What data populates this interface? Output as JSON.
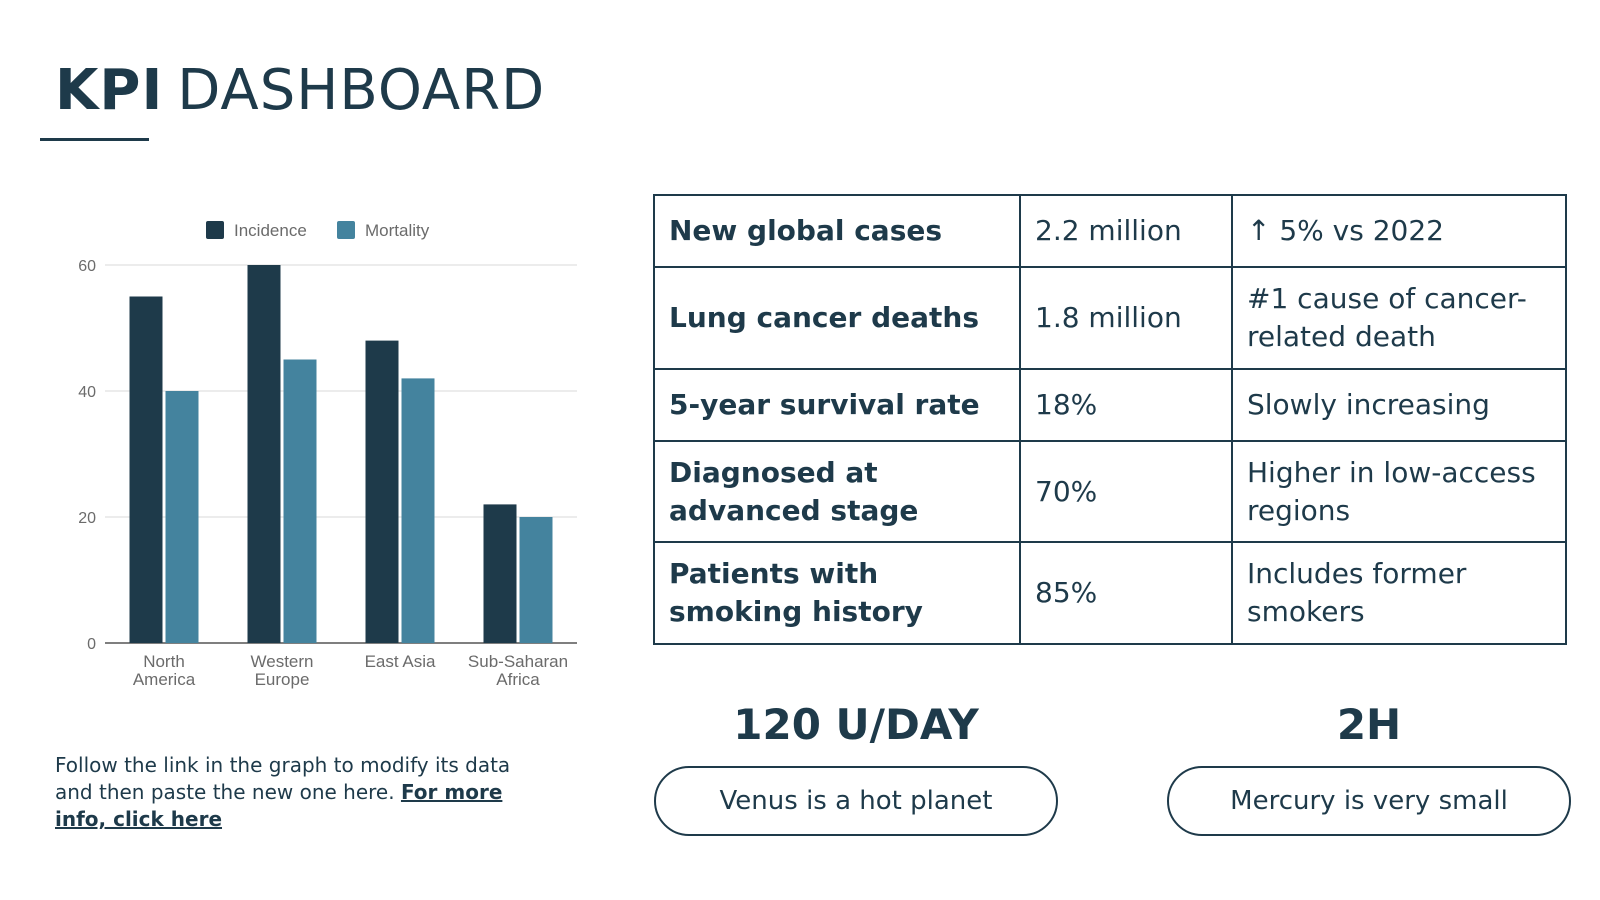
{
  "header": {
    "title_bold": "KPI",
    "title_rest": "DASHBOARD"
  },
  "colors": {
    "primary": "#1e3a4a",
    "incidence": "#1e3a4a",
    "mortality": "#44839e",
    "grid": "#d9d9d9"
  },
  "chart_data": {
    "type": "bar",
    "categories": [
      [
        "North",
        "America"
      ],
      [
        "Western",
        "Europe"
      ],
      [
        "East Asia"
      ],
      [
        "Sub-Saharan",
        "Africa"
      ]
    ],
    "series": [
      {
        "name": "Incidence",
        "values": [
          55,
          60,
          48,
          22
        ]
      },
      {
        "name": "Mortality",
        "values": [
          40,
          45,
          42,
          20
        ]
      }
    ],
    "yticks": [
      0,
      20,
      40,
      60
    ],
    "ylim": [
      0,
      60
    ],
    "grid": true,
    "legend": "top"
  },
  "table": {
    "rows": [
      {
        "metric": "New global cases",
        "value": "2.2 million",
        "note": "↑ 5% vs 2022"
      },
      {
        "metric": "Lung cancer deaths",
        "value": "1.8 million",
        "note": "#1 cause of cancer-related death"
      },
      {
        "metric": "5-year survival rate",
        "value": "18%",
        "note": "Slowly increasing"
      },
      {
        "metric": "Diagnosed at advanced stage",
        "value": "70%",
        "note": "Higher in low-access regions"
      },
      {
        "metric": "Patients with smoking history",
        "value": "85%",
        "note": "Includes former smokers"
      }
    ]
  },
  "note": {
    "text": "Follow the link in the graph to modify its data and then paste the new one here. ",
    "link": "For more info, click here"
  },
  "stats": [
    {
      "value": "120 U/DAY",
      "label": "Venus is a hot planet"
    },
    {
      "value": "2H",
      "label": "Mercury is very small"
    }
  ]
}
